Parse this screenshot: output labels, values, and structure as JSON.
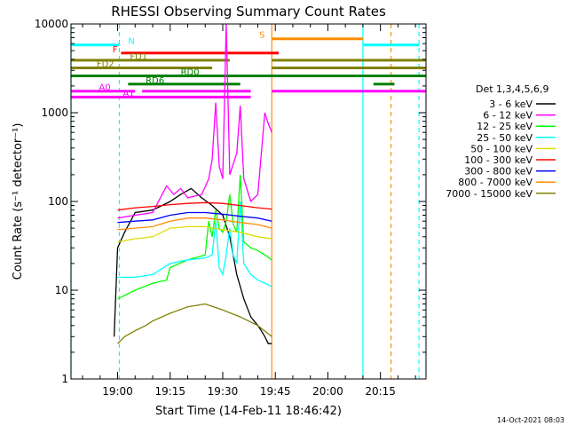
{
  "chart_data": {
    "type": "line",
    "title": "RHESSI Observing Summary Count Rates",
    "xlabel": "Start Time (14-Feb-11 18:46:42)",
    "ylabel": "Count Rate (s⁻¹ detector⁻¹)",
    "yscale": "log",
    "xlim": [
      "18:46:42",
      "20:28:00"
    ],
    "ylim": [
      1,
      10000
    ],
    "xticks": [
      "19:00",
      "19:15",
      "19:30",
      "19:45",
      "20:00",
      "20:15"
    ],
    "yticks": [
      "1",
      "10",
      "100",
      "1000",
      "10000"
    ],
    "legend_title": "Det 1,3,4,5,6,9",
    "legend_position": "right",
    "timestamp": "14-Oct-2021 08:03",
    "series": [
      {
        "name": "3 - 6 keV",
        "color": "#000000",
        "x": [
          "18:59",
          "19:00",
          "19:02",
          "19:05",
          "19:10",
          "19:15",
          "19:18",
          "19:21",
          "19:24",
          "19:27",
          "19:30",
          "19:32",
          "19:34",
          "19:36",
          "19:38",
          "19:40",
          "19:41",
          "19:42",
          "19:43",
          "19:44"
        ],
        "y": [
          3,
          30,
          45,
          75,
          80,
          100,
          120,
          140,
          110,
          90,
          70,
          40,
          15,
          8,
          5,
          4,
          3.5,
          3,
          2.5,
          2.5
        ]
      },
      {
        "name": "6 - 12 keV",
        "color": "#ff00ff",
        "x": [
          "19:00",
          "19:05",
          "19:10",
          "19:14",
          "19:16",
          "19:18",
          "19:20",
          "19:24",
          "19:26",
          "19:27",
          "19:28",
          "19:29",
          "19:30",
          "19:31",
          "19:32",
          "19:34",
          "19:35",
          "19:36",
          "19:38",
          "19:40",
          "19:42",
          "19:43",
          "19:44"
        ],
        "y": [
          65,
          70,
          75,
          150,
          120,
          140,
          110,
          120,
          180,
          300,
          1300,
          250,
          180,
          10000,
          200,
          350,
          1200,
          180,
          100,
          120,
          1000,
          750,
          600
        ]
      },
      {
        "name": "12 - 25 keV",
        "color": "#00ff00",
        "x": [
          "19:00",
          "19:05",
          "19:10",
          "19:14",
          "19:15",
          "19:20",
          "19:25",
          "19:26",
          "19:27",
          "19:28",
          "19:29",
          "19:30",
          "19:31",
          "19:32",
          "19:33",
          "19:34",
          "19:35",
          "19:36",
          "19:38",
          "19:40",
          "19:42",
          "19:44"
        ],
        "y": [
          8,
          10,
          12,
          13,
          18,
          22,
          25,
          60,
          40,
          80,
          50,
          45,
          60,
          120,
          55,
          45,
          200,
          35,
          30,
          28,
          25,
          22
        ]
      },
      {
        "name": "25 - 50 keV",
        "color": "#00ffff",
        "x": [
          "19:00",
          "19:05",
          "19:10",
          "19:15",
          "19:20",
          "19:25",
          "19:27",
          "19:28",
          "19:29",
          "19:30",
          "19:31",
          "19:32",
          "19:33",
          "19:34",
          "19:35",
          "19:36",
          "19:38",
          "19:40",
          "19:42",
          "19:44"
        ],
        "y": [
          14,
          14,
          15,
          20,
          22,
          23,
          25,
          60,
          18,
          15,
          25,
          50,
          25,
          20,
          100,
          20,
          15,
          13,
          12,
          11
        ]
      },
      {
        "name": "50 - 100 keV",
        "color": "#dddd00",
        "x": [
          "19:00",
          "19:05",
          "19:10",
          "19:15",
          "19:20",
          "19:25",
          "19:30",
          "19:35",
          "19:40",
          "19:44"
        ],
        "y": [
          35,
          38,
          40,
          50,
          52,
          52,
          48,
          45,
          40,
          38
        ]
      },
      {
        "name": "100 - 300 keV",
        "color": "#ff0000",
        "x": [
          "19:00",
          "19:05",
          "19:10",
          "19:15",
          "19:20",
          "19:25",
          "19:30",
          "19:35",
          "19:40",
          "19:44"
        ],
        "y": [
          80,
          85,
          88,
          92,
          95,
          97,
          95,
          90,
          85,
          82
        ]
      },
      {
        "name": "300 - 800 keV",
        "color": "#0000ff",
        "x": [
          "19:00",
          "19:05",
          "19:10",
          "19:15",
          "19:20",
          "19:25",
          "19:30",
          "19:35",
          "19:40",
          "19:44"
        ],
        "y": [
          58,
          60,
          62,
          70,
          75,
          75,
          72,
          68,
          65,
          60
        ]
      },
      {
        "name": "800 - 7000 keV",
        "color": "#ff8c00",
        "x": [
          "19:00",
          "19:05",
          "19:10",
          "19:15",
          "19:20",
          "19:25",
          "19:30",
          "19:35",
          "19:40",
          "19:44"
        ],
        "y": [
          48,
          50,
          52,
          60,
          65,
          65,
          62,
          58,
          55,
          50
        ]
      },
      {
        "name": "7000 - 15000 keV",
        "color": "#808000",
        "x": [
          "19:00",
          "19:02",
          "19:05",
          "19:08",
          "19:10",
          "19:15",
          "19:20",
          "19:25",
          "19:30",
          "19:35",
          "19:40",
          "19:44"
        ],
        "y": [
          2.5,
          3,
          3.5,
          4,
          4.5,
          5.5,
          6.5,
          7,
          6,
          5,
          4,
          3
        ]
      }
    ],
    "state_bars": [
      {
        "label": "N",
        "color": "#00ffff",
        "y": 5800,
        "segments": [
          [
            "18:46:42",
            "19:00:30"
          ],
          [
            "20:10:00",
            "20:26:00"
          ]
        ]
      },
      {
        "label": "S",
        "color": "#ff8c00",
        "y": 6800,
        "segments": [
          [
            "19:44:00",
            "20:10:00"
          ]
        ]
      },
      {
        "label": "F",
        "color": "#ff0000",
        "y": 4700,
        "segments": [
          [
            "19:01:00",
            "19:46:00"
          ]
        ]
      },
      {
        "label": "FD1",
        "color": "#808000",
        "y": 3900,
        "segments": [
          [
            "18:46:42",
            "19:32:00"
          ],
          [
            "19:44:00",
            "20:28:00"
          ]
        ]
      },
      {
        "label": "FD2",
        "color": "#808000",
        "y": 3200,
        "segments": [
          [
            "18:46:42",
            "19:27:00"
          ],
          [
            "19:44:00",
            "20:28:00"
          ]
        ]
      },
      {
        "label": "RD0",
        "color": "#008000",
        "y": 2600,
        "segments": [
          [
            "18:46:42",
            "20:28:00"
          ]
        ]
      },
      {
        "label": "RD6",
        "color": "#008000",
        "y": 2100,
        "segments": [
          [
            "19:03:00",
            "19:35:00"
          ],
          [
            "20:13:00",
            "20:19:00"
          ]
        ]
      },
      {
        "label": "A0",
        "color": "#ff00ff",
        "y": 1750,
        "segments": [
          [
            "18:46:42",
            "19:05:00"
          ],
          [
            "19:07:00",
            "19:38:00"
          ],
          [
            "19:44:00",
            "20:28:00"
          ]
        ]
      },
      {
        "label": "A1",
        "color": "#ff00ff",
        "y": 1500,
        "segments": [
          [
            "18:46:42",
            "19:38:00"
          ]
        ]
      }
    ],
    "vertical_lines": [
      {
        "time": "18:46:42",
        "color": "#00ffff",
        "style": "solid"
      },
      {
        "time": "19:00:30",
        "color": "#00ffff",
        "style": "dashed"
      },
      {
        "time": "19:44:00",
        "color": "#ff8c00",
        "style": "solid"
      },
      {
        "time": "20:10:00",
        "color": "#00ffff",
        "style": "solid"
      },
      {
        "time": "20:18:00",
        "color": "#ff8c00",
        "style": "dashed"
      },
      {
        "time": "20:26:00",
        "color": "#00ffff",
        "style": "dashed"
      }
    ]
  }
}
